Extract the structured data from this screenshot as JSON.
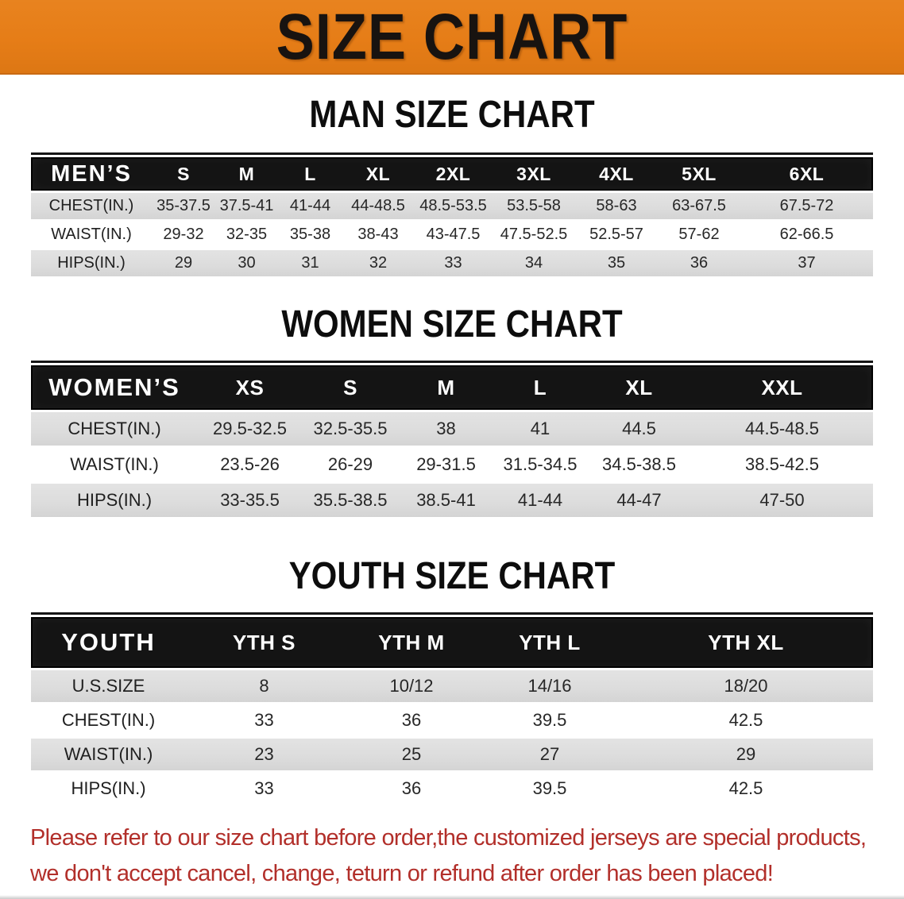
{
  "banner": {
    "title": "SIZE CHART"
  },
  "colors": {
    "banner_bg": "#e67d17",
    "banner_bg_light": "#e8831f",
    "banner_bg_dark": "#dd7714",
    "header_bg": "#141414",
    "row_gray": "#dcdcdc",
    "disclaimer_red": "#b22f2a"
  },
  "sections": [
    {
      "id": "men",
      "heading": "MAN SIZE CHART",
      "corner_label": "MEN’S",
      "sizes": [
        "S",
        "M",
        "L",
        "XL",
        "2XL",
        "3XL",
        "4XL",
        "5XL",
        "6XL"
      ],
      "rows": [
        {
          "label": "CHEST(IN.)",
          "values": [
            "35-37.5",
            "37.5-41",
            "41-44",
            "44-48.5",
            "48.5-53.5",
            "53.5-58",
            "58-63",
            "63-67.5",
            "67.5-72"
          ]
        },
        {
          "label": "WAIST(IN.)",
          "values": [
            "29-32",
            "32-35",
            "35-38",
            "38-43",
            "43-47.5",
            "47.5-52.5",
            "52.5-57",
            "57-62",
            "62-66.5"
          ]
        },
        {
          "label": "HIPS(IN.)",
          "values": [
            "29",
            "30",
            "31",
            "32",
            "33",
            "34",
            "35",
            "36",
            "37"
          ]
        }
      ]
    },
    {
      "id": "women",
      "heading": "WOMEN SIZE CHART",
      "corner_label": "WOMEN’S",
      "sizes": [
        "XS",
        "S",
        "M",
        "L",
        "XL",
        "XXL"
      ],
      "rows": [
        {
          "label": "CHEST(IN.)",
          "values": [
            "29.5-32.5",
            "32.5-35.5",
            "38",
            "41",
            "44.5",
            "44.5-48.5"
          ]
        },
        {
          "label": "WAIST(IN.)",
          "values": [
            "23.5-26",
            "26-29",
            "29-31.5",
            "31.5-34.5",
            "34.5-38.5",
            "38.5-42.5"
          ]
        },
        {
          "label": "HIPS(IN.)",
          "values": [
            "33-35.5",
            "35.5-38.5",
            "38.5-41",
            "41-44",
            "44-47",
            "47-50"
          ]
        }
      ]
    },
    {
      "id": "youth",
      "heading": "YOUTH SIZE CHART",
      "corner_label": "YOUTH",
      "sizes": [
        "YTH S",
        "YTH M",
        "YTH L",
        "YTH XL"
      ],
      "rows": [
        {
          "label": "U.S.SIZE",
          "values": [
            "8",
            "10/12",
            "14/16",
            "18/20"
          ]
        },
        {
          "label": "CHEST(IN.)",
          "values": [
            "33",
            "36",
            "39.5",
            "42.5"
          ]
        },
        {
          "label": "WAIST(IN.)",
          "values": [
            "23",
            "25",
            "27",
            "29"
          ]
        },
        {
          "label": "HIPS(IN.)",
          "values": [
            "33",
            "36",
            "39.5",
            "42.5"
          ]
        }
      ]
    }
  ],
  "disclaimer": {
    "line1": "Please refer to our size chart before order,the customized jerseys are special products,",
    "line2": "we don't accept cancel, change, teturn or refund after order has been placed!"
  }
}
